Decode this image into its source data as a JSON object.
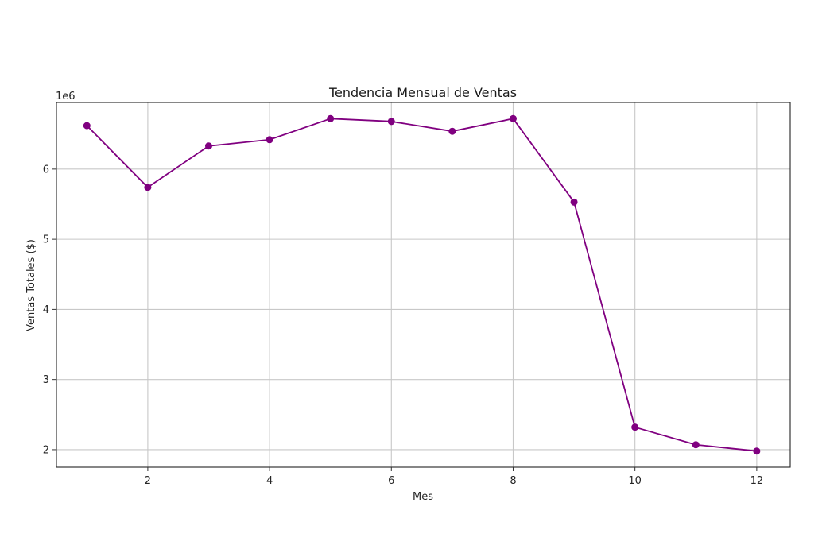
{
  "chart_data": {
    "type": "line",
    "title": "Tendencia Mensual de Ventas",
    "xlabel": "Mes",
    "ylabel": "Ventas Totales ($)",
    "y_offset_label": "1e6",
    "xlim": [
      0.5,
      12.55
    ],
    "ylim": [
      1.75,
      6.95
    ],
    "x_ticks": [
      2,
      4,
      6,
      8,
      10,
      12
    ],
    "x_tick_labels": [
      "2",
      "4",
      "6",
      "8",
      "10",
      "12"
    ],
    "y_ticks": [
      2,
      3,
      4,
      5,
      6
    ],
    "y_tick_labels": [
      "2",
      "3",
      "4",
      "5",
      "6"
    ],
    "grid": true,
    "series": [
      {
        "color": "#800080",
        "marker": "circle",
        "x": [
          1,
          2,
          3,
          4,
          5,
          6,
          7,
          8,
          9,
          10,
          11,
          12
        ],
        "y": [
          6.62,
          5.74,
          6.33,
          6.42,
          6.72,
          6.68,
          6.54,
          6.72,
          5.53,
          2.32,
          2.07,
          1.98
        ]
      }
    ]
  }
}
